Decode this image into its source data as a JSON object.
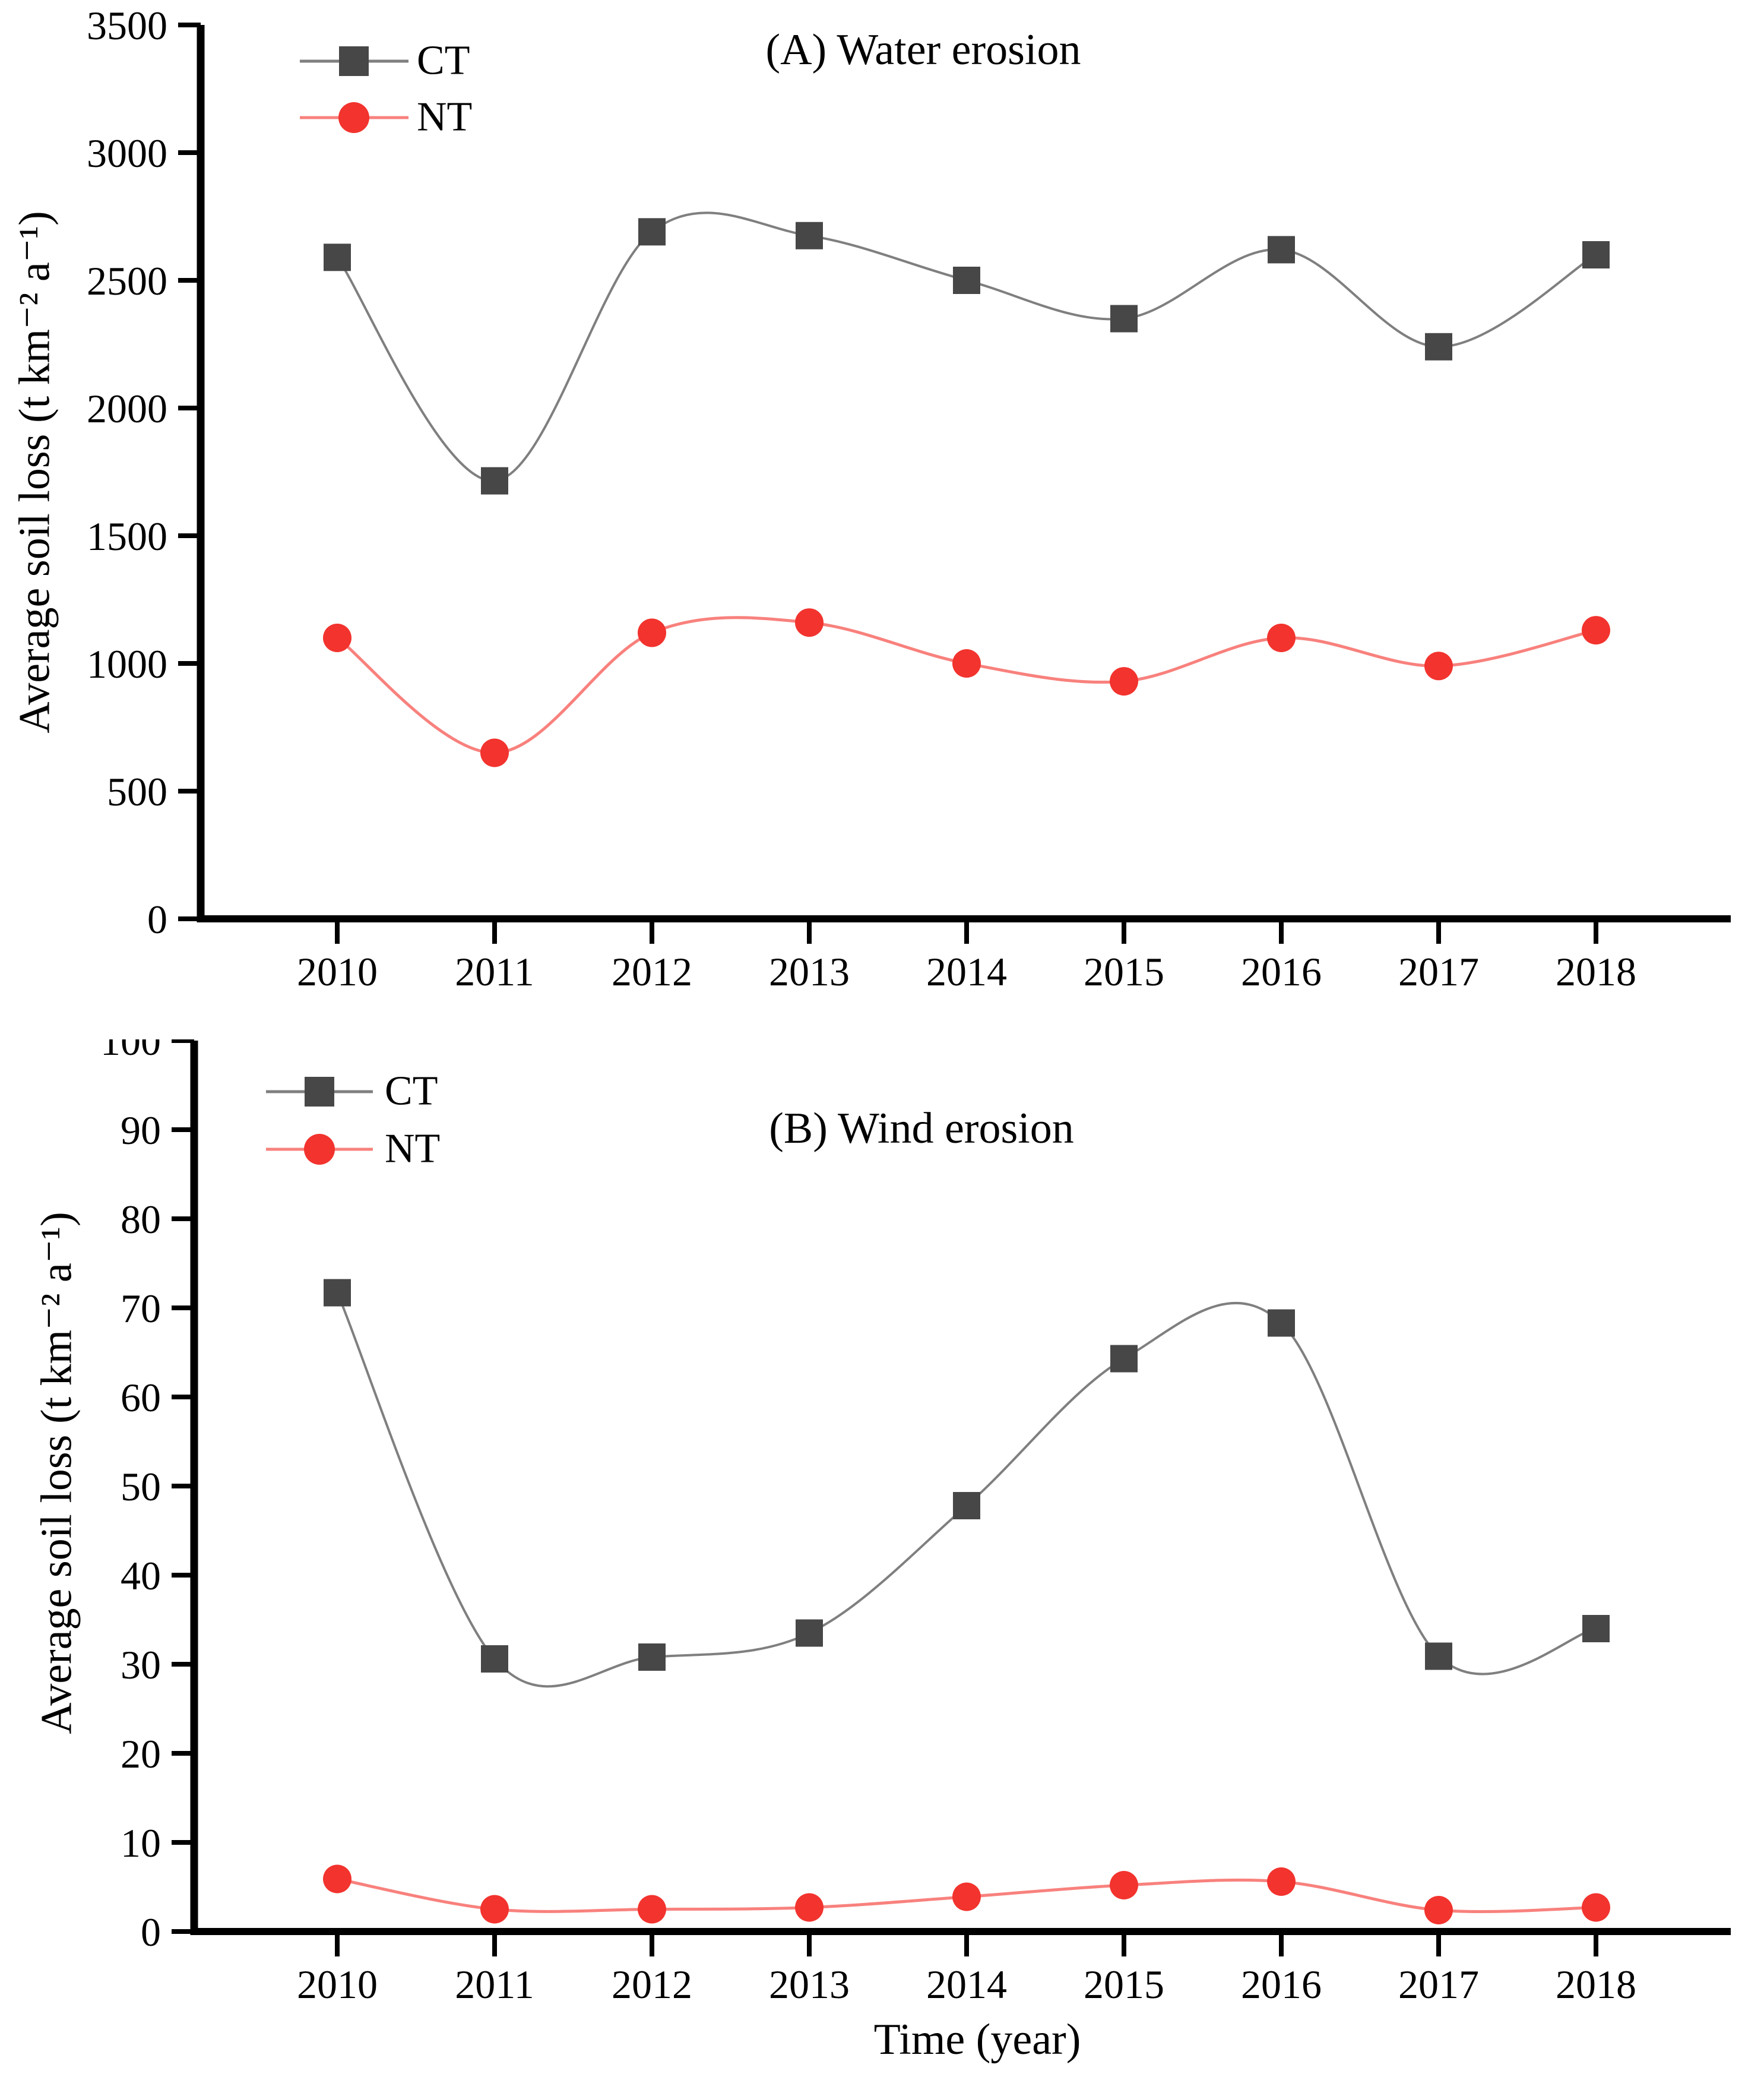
{
  "figure": {
    "xlabel": "Time (year)",
    "ylabel": "Average soil loss (t km⁻² a⁻¹)"
  },
  "colors": {
    "ct_marker": "#474747",
    "ct_line": "#7f7f7f",
    "nt_marker": "#f2332e",
    "nt_line": "#f8817d",
    "axis": "#000000",
    "text": "#000000"
  },
  "chart_data": [
    {
      "id": "A",
      "type": "line",
      "title": "(A) Water erosion",
      "xlabel": "",
      "ylabel": "Average soil loss (t km⁻² a⁻¹)",
      "categories": [
        "2010",
        "2011",
        "2012",
        "2013",
        "2014",
        "2015",
        "2016",
        "2017",
        "2018"
      ],
      "series": [
        {
          "name": "CT",
          "values": [
            2590,
            1715,
            2690,
            2675,
            2500,
            2350,
            2620,
            2240,
            2600
          ]
        },
        {
          "name": "NT",
          "values": [
            1100,
            650,
            1120,
            1160,
            1000,
            930,
            1100,
            990,
            1130
          ]
        }
      ],
      "ylim": [
        0,
        3500
      ],
      "ytick_step": 500,
      "grid": false,
      "legend_position": "upper-left"
    },
    {
      "id": "B",
      "type": "line",
      "title": "(B) Wind erosion",
      "xlabel": "Time (year)",
      "ylabel": "Average soil loss (t km⁻² a⁻¹)",
      "categories": [
        "2010",
        "2011",
        "2012",
        "2013",
        "2014",
        "2015",
        "2016",
        "2017",
        "2018"
      ],
      "series": [
        {
          "name": "CT",
          "values": [
            71.7,
            30.6,
            30.8,
            33.5,
            47.8,
            64.3,
            68.3,
            30.9,
            34.0
          ]
        },
        {
          "name": "NT",
          "values": [
            5.9,
            2.5,
            2.5,
            2.7,
            3.9,
            5.2,
            5.6,
            2.4,
            2.7
          ]
        }
      ],
      "ylim": [
        0,
        100
      ],
      "ytick_step": 10,
      "grid": false,
      "legend_position": "upper-left"
    }
  ]
}
